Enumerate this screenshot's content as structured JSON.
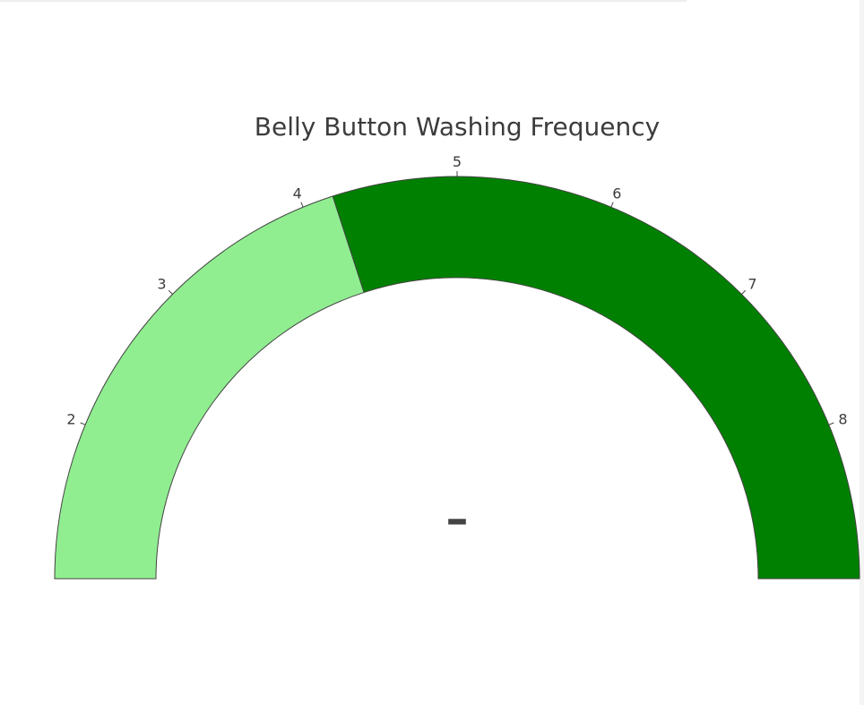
{
  "chart_data": {
    "type": "gauge",
    "title": "Belly Button Washing Frequency",
    "axis_range": [
      1,
      9
    ],
    "tick_values": [
      2,
      3,
      4,
      5,
      6,
      7,
      8
    ],
    "tick_labels": [
      "2",
      "3",
      "4",
      "5",
      "6",
      "7",
      "8"
    ],
    "bands": [
      {
        "from": 1,
        "to": 4.2,
        "color": "#90EE90"
      },
      {
        "from": 4.2,
        "to": 9,
        "color": "#008000"
      }
    ],
    "value": null,
    "value_text": "–",
    "outline_color": "#444444"
  }
}
